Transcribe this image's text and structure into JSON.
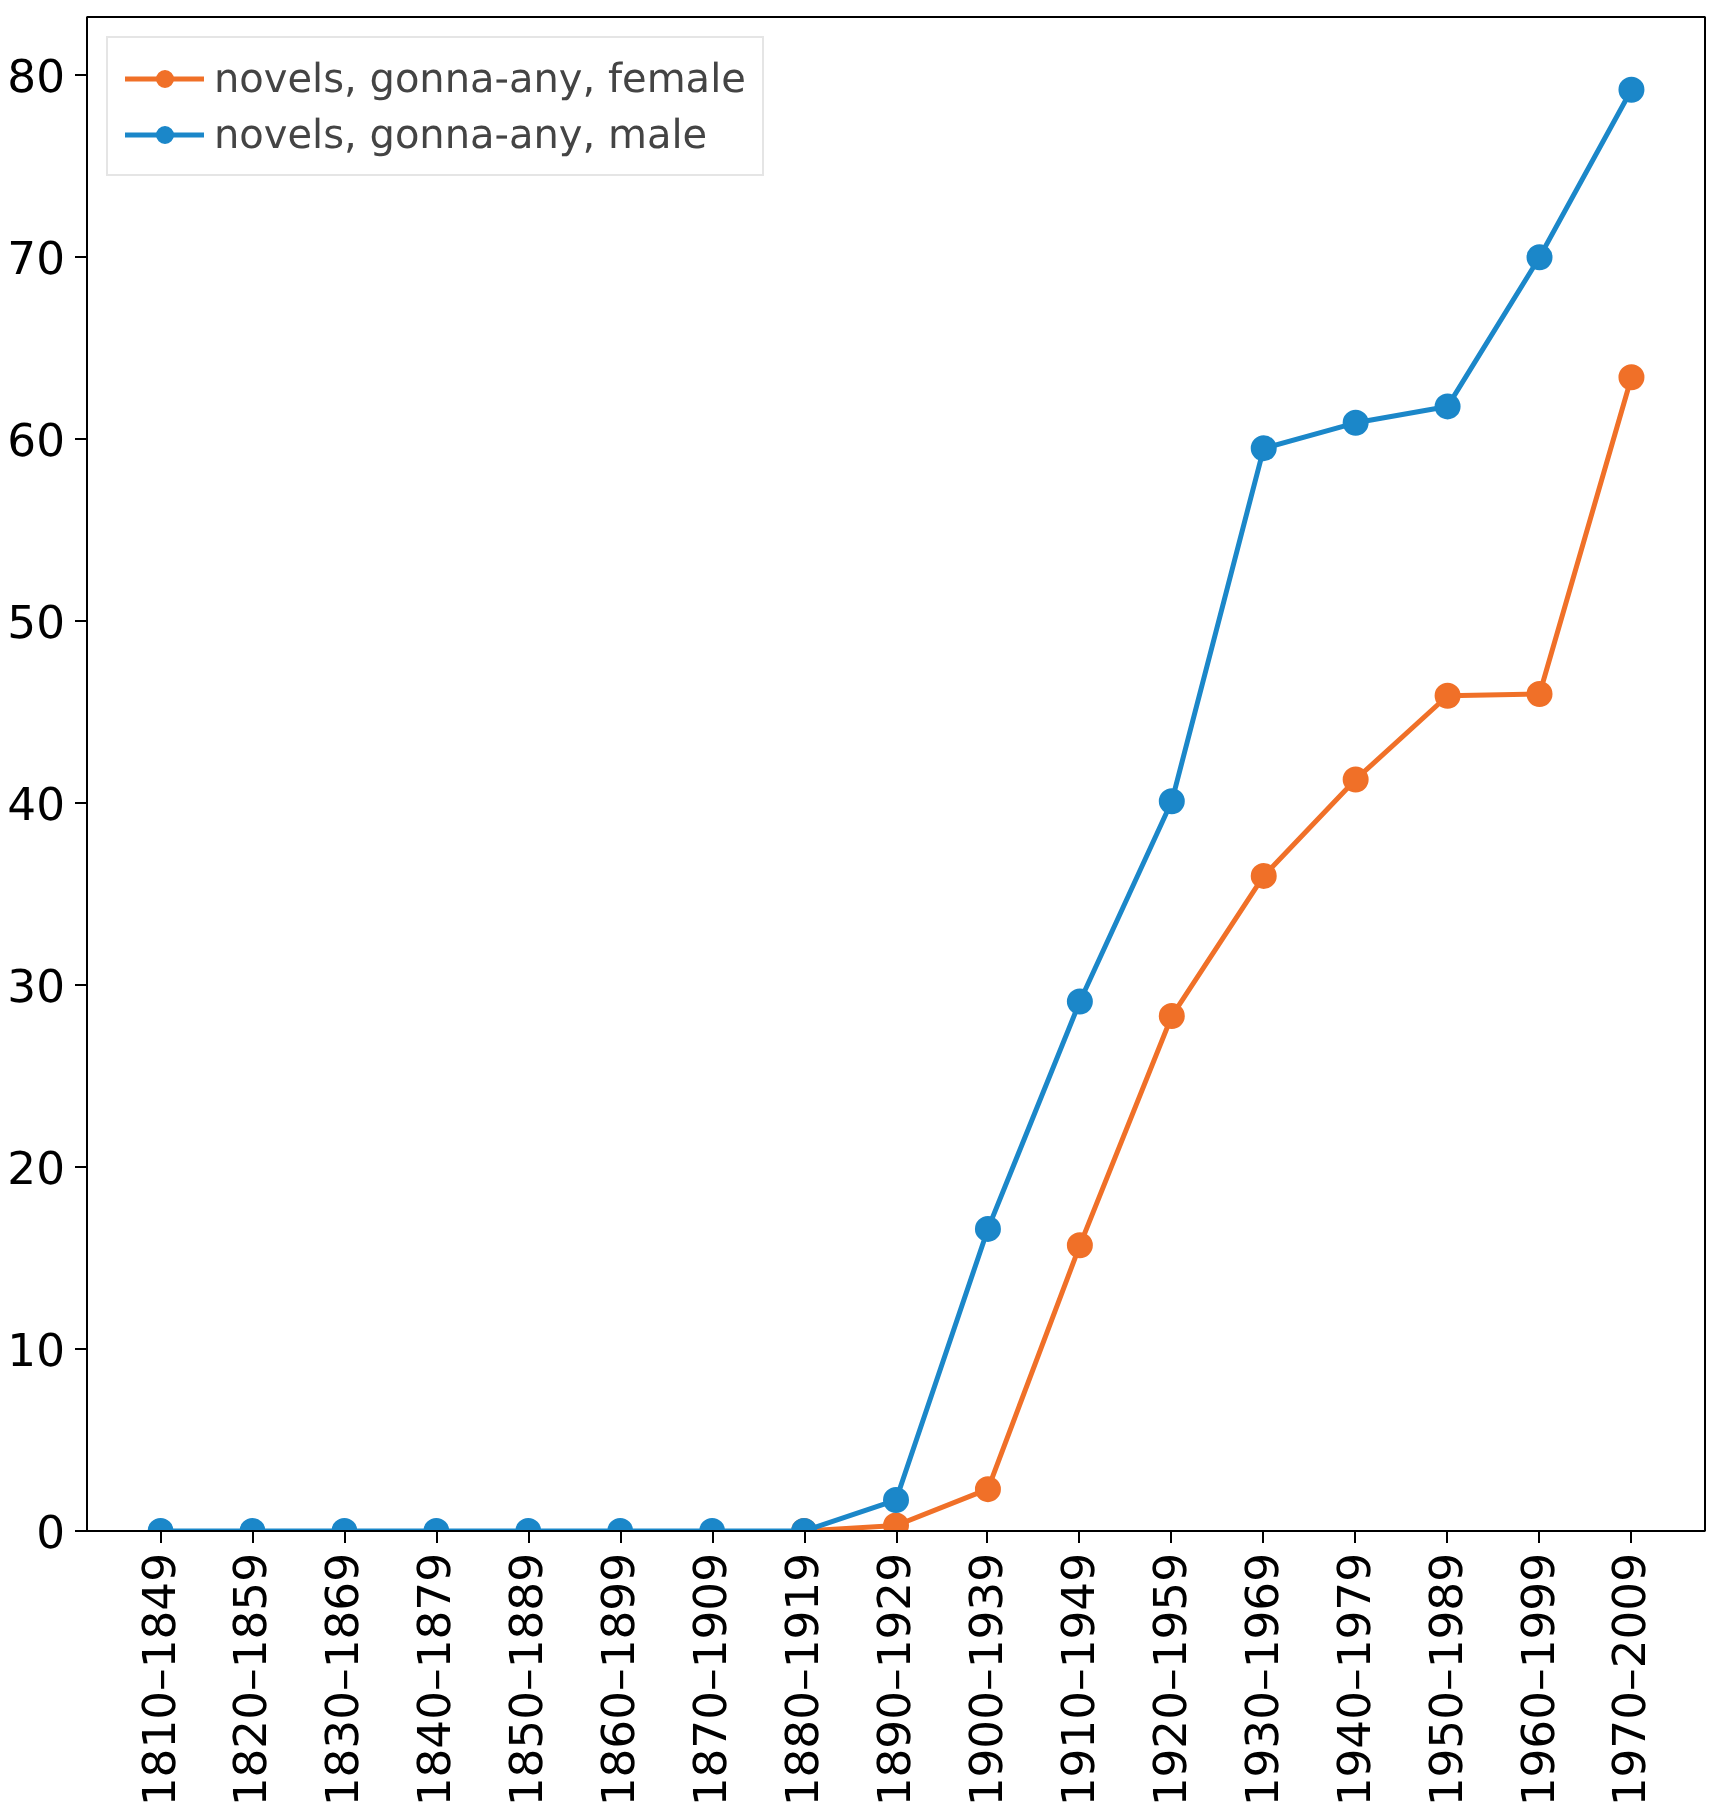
{
  "chart_data": {
    "type": "line",
    "categories": [
      "1810–1849",
      "1820–1859",
      "1830–1869",
      "1840–1879",
      "1850–1889",
      "1860–1899",
      "1870–1909",
      "1880–1919",
      "1890–1929",
      "1900–1939",
      "1910–1949",
      "1920–1959",
      "1930–1969",
      "1940–1979",
      "1950–1989",
      "1960–1999",
      "1970–2009"
    ],
    "series": [
      {
        "name": "novels, gonna-any, female",
        "color": "#f07028",
        "values": [
          null,
          null,
          null,
          null,
          null,
          null,
          null,
          0,
          0.3,
          2.3,
          15.7,
          28.3,
          36.0,
          41.3,
          45.9,
          46.0,
          63.4
        ]
      },
      {
        "name": "novels, gonna-any, male",
        "color": "#1b87c9",
        "values": [
          0,
          0,
          0,
          0,
          0,
          0,
          0,
          0,
          1.7,
          16.6,
          29.1,
          40.1,
          59.5,
          60.9,
          61.8,
          70.0,
          79.2
        ]
      }
    ],
    "ylim": [
      0,
      83.2
    ],
    "yticks": [
      0,
      10,
      20,
      30,
      40,
      50,
      60,
      70,
      80
    ],
    "grid": false,
    "legend": "top left",
    "marker": "circle",
    "line_style": "solid"
  }
}
